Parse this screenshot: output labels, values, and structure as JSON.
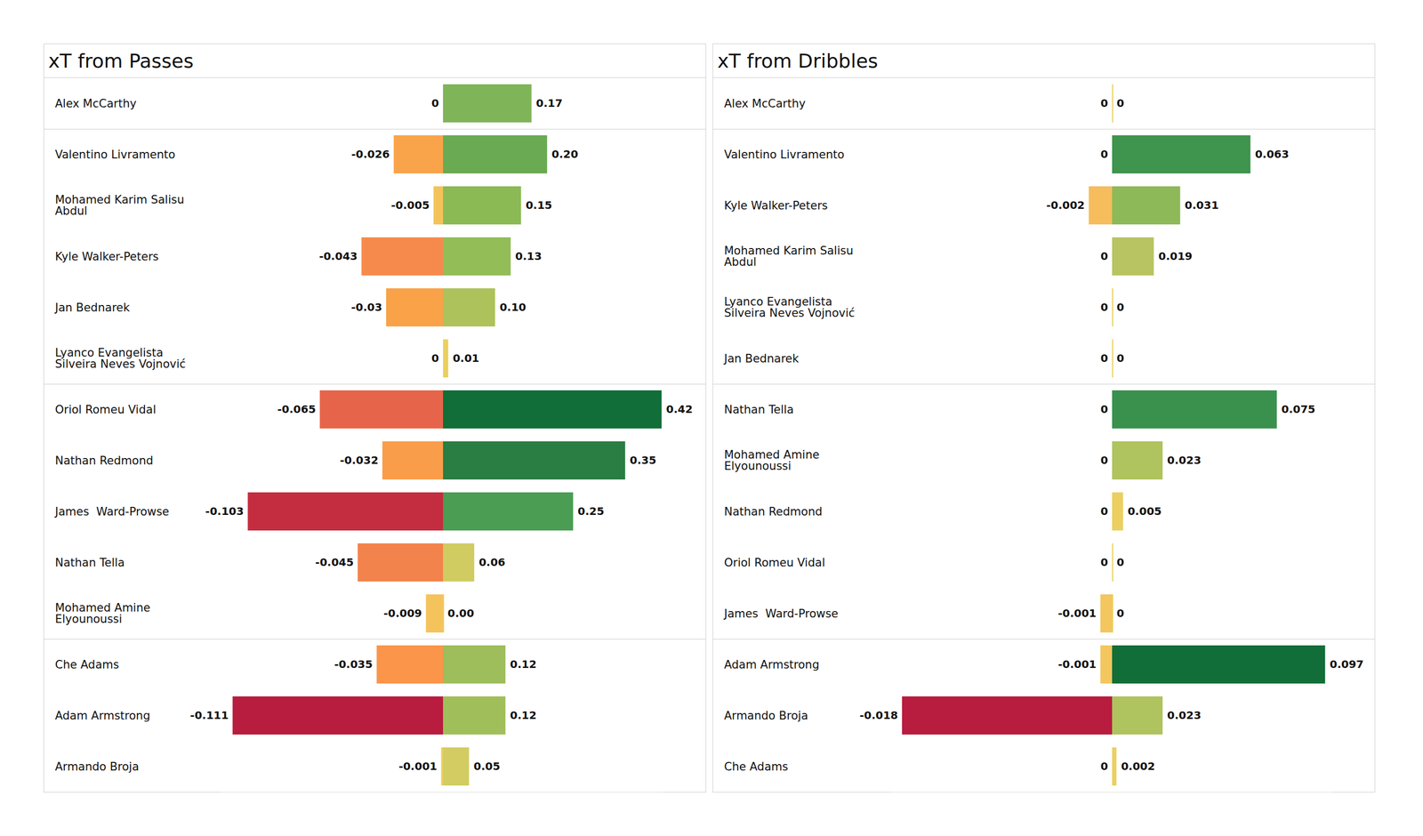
{
  "chart_data": [
    {
      "type": "bar",
      "title": "xT from Passes",
      "orientation": "horizontal",
      "data_labels": true,
      "tick_labels": false,
      "categories": [
        "Alex McCarthy",
        "Valentino Livramento",
        "Mohamed Karim Salisu Abdul",
        "Kyle Walker-Peters",
        "Jan Bednarek",
        "Lyanco Evangelista Silveira Neves Vojnović",
        "Oriol Romeu Vidal",
        "Nathan Redmond",
        "James  Ward-Prowse",
        "Nathan Tella",
        "Mohamed Amine Elyounoussi",
        "Che Adams",
        "Adam Armstrong",
        "Armando Broja"
      ],
      "series": [
        {
          "values": [
            0,
            -0.026,
            -0.005,
            -0.043,
            -0.03,
            0,
            -0.065,
            -0.032,
            -0.103,
            -0.045,
            -0.009,
            -0.035,
            -0.111,
            -0.001
          ],
          "colors": [
            "#efd262",
            "#f9a44a",
            "#f3c35a",
            "#f68a4c",
            "#f9a248",
            "#efd262",
            "#e6654a",
            "#f99d4b",
            "#c42d3f",
            "#f3834c",
            "#f5c35c",
            "#fa954a",
            "#b81c3e",
            "#edd060"
          ],
          "xlim": [
            -0.117,
            0
          ]
        },
        {
          "values": [
            0.17,
            0.2,
            0.15,
            0.13,
            0.1,
            0.01,
            0.42,
            0.35,
            0.25,
            0.06,
            0,
            0.12,
            0.12,
            0.05
          ],
          "value_labels": [
            "0.17",
            "0.20",
            "0.15",
            "0.13",
            "0.10",
            "0.01",
            "0.42",
            "0.35",
            "0.25",
            "0.06",
            "0.00",
            "0.12",
            "0.12",
            "0.05"
          ],
          "colors": [
            "#7fb459",
            "#6aaa52",
            "#8bba55",
            "#92bd57",
            "#adc25b",
            "#ebd060",
            "#116e38",
            "#2a7d43",
            "#4a9d53",
            "#d0cc62",
            "#f0d060",
            "#9ebd5b",
            "#a0bf5a",
            "#d2cc63"
          ],
          "xlim": [
            0,
            0.422
          ]
        }
      ]
    },
    {
      "type": "bar",
      "title": "xT from Dribbles",
      "orientation": "horizontal",
      "data_labels": true,
      "tick_labels": false,
      "categories": [
        "Alex McCarthy",
        "Valentino Livramento",
        "Kyle Walker-Peters",
        "Mohamed Karim Salisu Abdul",
        "Lyanco Evangelista Silveira Neves Vojnović",
        "Jan Bednarek",
        "Nathan Tella",
        "Mohamed Amine Elyounoussi",
        "Nathan Redmond",
        "Oriol Romeu Vidal",
        "James  Ward-Prowse",
        "Adam Armstrong",
        "Armando Broja",
        "Che Adams"
      ],
      "series": [
        {
          "values": [
            0,
            0,
            -0.002,
            0,
            0,
            0,
            0,
            0,
            0,
            0,
            -0.001,
            -0.001,
            -0.018,
            0
          ],
          "colors": [
            "#ecd060",
            "#ecd060",
            "#f6bd5c",
            "#ecd060",
            "#ecd060",
            "#ecd060",
            "#ecd060",
            "#ecd060",
            "#ecd060",
            "#ecd060",
            "#f3c65e",
            "#f3c65e",
            "#b81c3e",
            "#ecd060"
          ],
          "xlim": [
            -0.019,
            0
          ]
        },
        {
          "values": [
            0,
            0.063,
            0.031,
            0.019,
            0,
            0,
            0.075,
            0.023,
            0.005,
            0,
            0,
            0.097,
            0.023,
            0.002
          ],
          "colors": [
            "#ecd060",
            "#3f944e",
            "#8eb958",
            "#b8c462",
            "#ecd060",
            "#ecd060",
            "#3a914e",
            "#afc35e",
            "#eccf5f",
            "#ecd060",
            "#ecd060",
            "#116e38",
            "#afc35e",
            "#ecd060"
          ],
          "xlim": [
            0,
            0.1
          ]
        }
      ]
    }
  ]
}
